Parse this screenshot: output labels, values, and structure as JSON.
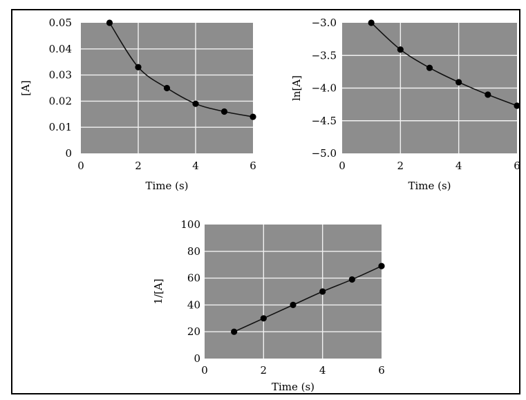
{
  "chart_data": [
    {
      "id": "conc",
      "type": "line",
      "xlabel": "Time (s)",
      "ylabel": "[A]",
      "xlim": [
        0,
        6
      ],
      "ylim": [
        0,
        0.05
      ],
      "xticks": [
        "0",
        "2",
        "4",
        "6"
      ],
      "yticks": [
        "0",
        "0.01",
        "0.02",
        "0.03",
        "0.04",
        "0.05"
      ],
      "grid": true,
      "x": [
        1,
        2,
        3,
        4,
        5,
        6
      ],
      "y": [
        0.05,
        0.033,
        0.025,
        0.019,
        0.016,
        0.014
      ]
    },
    {
      "id": "ln",
      "type": "line",
      "xlabel": "Time (s)",
      "ylabel": "ln[A]",
      "xlim": [
        0,
        6
      ],
      "ylim": [
        -5.0,
        -3.0
      ],
      "xticks": [
        "0",
        "2",
        "4",
        "6"
      ],
      "yticks": [
        "-5.0",
        "-4.5",
        "-4.0",
        "-3.5",
        "-3.0"
      ],
      "grid": true,
      "x": [
        1,
        2,
        3,
        4,
        5,
        6
      ],
      "y": [
        -3.0,
        -3.41,
        -3.69,
        -3.91,
        -4.1,
        -4.27
      ]
    },
    {
      "id": "inv",
      "type": "line",
      "xlabel": "Time (s)",
      "ylabel": "1/[A]",
      "xlim": [
        0,
        6
      ],
      "ylim": [
        0,
        100
      ],
      "xticks": [
        "0",
        "2",
        "4",
        "6"
      ],
      "yticks": [
        "0",
        "20",
        "40",
        "60",
        "80",
        "100"
      ],
      "grid": true,
      "x": [
        1,
        2,
        3,
        4,
        5,
        6
      ],
      "y": [
        20,
        30,
        40,
        50,
        59,
        69
      ]
    }
  ]
}
